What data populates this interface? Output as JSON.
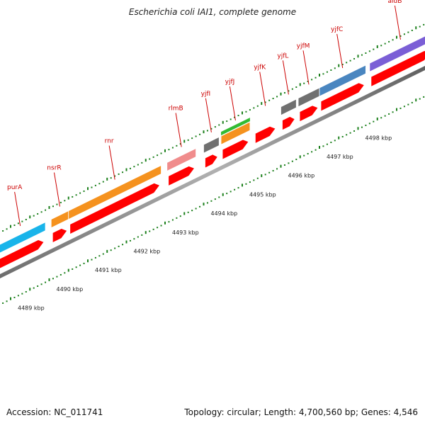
{
  "title": "Escherichia coli IAI1, complete genome",
  "accession": "Accession: NC_011741",
  "summary": "Topology: circular; Length: 4,700,560 bp; Genes: 4,546",
  "scale": {
    "unit": "kbp",
    "ticks": [
      {
        "value": 4489,
        "label": "4489 kbp"
      },
      {
        "value": 4490,
        "label": "4490 kbp"
      },
      {
        "value": 4491,
        "label": "4491 kbp"
      },
      {
        "value": 4492,
        "label": "4492 kbp"
      },
      {
        "value": 4493,
        "label": "4493 kbp"
      },
      {
        "value": 4494,
        "label": "4494 kbp"
      },
      {
        "value": 4495,
        "label": "4495 kbp"
      },
      {
        "value": 4496,
        "label": "4496 kbp"
      },
      {
        "value": 4497,
        "label": "4497 kbp"
      },
      {
        "value": 4498,
        "label": "4498 kbp"
      }
    ]
  },
  "colors": {
    "backbone": "#888888",
    "cds": "#ff0000",
    "tick": "#1a7f1a",
    "label": "#cc0000"
  },
  "genes": [
    {
      "name": "purA",
      "start": 4488.6,
      "end": 4489.9,
      "color": "#19b4ea"
    },
    {
      "name": "nsrR",
      "start": 4490.05,
      "end": 4490.5,
      "color": "#f5921e"
    },
    {
      "name": "rnr",
      "start": 4490.5,
      "end": 4492.9,
      "color": "#f5921e"
    },
    {
      "name": "rlmB",
      "start": 4493.05,
      "end": 4493.8,
      "color": "#f08c8c"
    },
    {
      "name": "yjfI",
      "start": 4494.0,
      "end": 4494.4,
      "color": "#707070"
    },
    {
      "name": "yjfJ",
      "start": 4494.45,
      "end": 4495.2,
      "color": "#f5921e",
      "overlay": "#33bb33"
    },
    {
      "name": "yjfK",
      "start": 4495.3,
      "end": 4495.9,
      "color": ""
    },
    {
      "name": "yjfL",
      "start": 4496.0,
      "end": 4496.4,
      "color": "#707070"
    },
    {
      "name": "yjfM",
      "start": 4496.45,
      "end": 4497.0,
      "color": "#707070"
    },
    {
      "name": "yjfC",
      "start": 4497.0,
      "end": 4498.2,
      "color": "#4a86c0"
    },
    {
      "name": "aidB",
      "start": 4498.3,
      "end": 4499.9,
      "color": "#7b5fd6"
    }
  ]
}
